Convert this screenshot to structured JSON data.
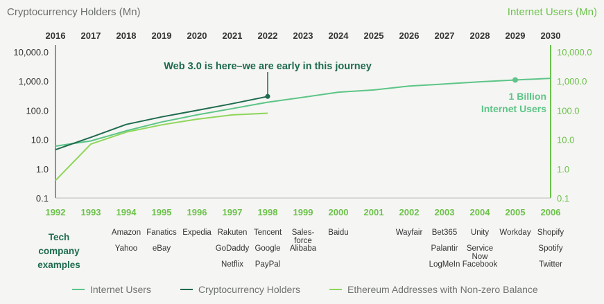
{
  "axis_titles": {
    "left": "Cryptocurrency Holders (Mn)",
    "right": "Internet Users (Mn)"
  },
  "tech_title": "Tech\ncompany\nexamples",
  "company_columns": [
    {
      "year": 1994,
      "items": [
        "Amazon",
        "Yahoo"
      ]
    },
    {
      "year": 1995,
      "items": [
        "Fanatics",
        "eBay"
      ]
    },
    {
      "year": 1996,
      "items": [
        "Expedia"
      ]
    },
    {
      "year": 1997,
      "items": [
        "Rakuten",
        "GoDaddy",
        "Netflix"
      ]
    },
    {
      "year": 1998,
      "items": [
        "Tencent",
        "Google",
        "PayPal"
      ]
    },
    {
      "year": 1999,
      "items": [
        "Sales-\nforce",
        "Alibaba"
      ]
    },
    {
      "year": 2000,
      "items": [
        "Baidu"
      ]
    },
    {
      "year": 2002,
      "items": [
        "Wayfair"
      ]
    },
    {
      "year": 2003,
      "items": [
        "Bet365",
        "Palantir",
        "LogMeIn"
      ]
    },
    {
      "year": 2004,
      "items": [
        "Unity",
        "Service\nNow",
        "Facebook"
      ]
    },
    {
      "year": 2005,
      "items": [
        "Workday"
      ]
    },
    {
      "year": 2006,
      "items": [
        "Shopify",
        "Spotify",
        "Twitter"
      ]
    }
  ],
  "legend": [
    {
      "label": "Internet Users",
      "color": "#5cc587"
    },
    {
      "label": "Cryptocurrency Holders",
      "color": "#1e6b4f"
    },
    {
      "label": "Ethereum Addresses with Non-zero Balance",
      "color": "#8fd65a"
    }
  ],
  "chart_data": {
    "type": "line",
    "scale": "log",
    "top_axis": {
      "ticks": [
        "2016",
        "2017",
        "2018",
        "2019",
        "2020",
        "2021",
        "2022",
        "2023",
        "2024",
        "2025",
        "2026",
        "2027",
        "2028",
        "2029",
        "2030"
      ],
      "color": "#333333"
    },
    "bottom_axis": {
      "ticks": [
        "1992",
        "1993",
        "1994",
        "1995",
        "1996",
        "1997",
        "1998",
        "1999",
        "2000",
        "2001",
        "2002",
        "2003",
        "2004",
        "2005",
        "2006"
      ],
      "color": "#6cc24a"
    },
    "left_axis": {
      "ticks": [
        "10,000.0",
        "1,000.0",
        "100.0",
        "10.0",
        "1.0",
        "0.1"
      ],
      "values": [
        10000,
        1000,
        100,
        10,
        1,
        0.1
      ],
      "color": "#333333"
    },
    "right_axis": {
      "ticks": [
        "10,000.0",
        "1,000.0",
        "100.0",
        "10.0",
        "1.0",
        "0.1"
      ],
      "values": [
        10000,
        1000,
        100,
        10,
        1,
        0.1
      ],
      "color": "#6cc24a"
    },
    "ylim": [
      0.1,
      10000
    ],
    "series": [
      {
        "name": "Internet Users",
        "axis": "bottom/right",
        "color": "#5cc587",
        "points": [
          [
            1992,
            6
          ],
          [
            1993,
            9
          ],
          [
            1994,
            20
          ],
          [
            1995,
            40
          ],
          [
            1996,
            70
          ],
          [
            1997,
            115
          ],
          [
            1998,
            190
          ],
          [
            1999,
            280
          ],
          [
            2000,
            420
          ],
          [
            2001,
            500
          ],
          [
            2002,
            680
          ],
          [
            2003,
            800
          ],
          [
            2004,
            950
          ],
          [
            2005,
            1100
          ],
          [
            2006,
            1250
          ]
        ]
      },
      {
        "name": "Cryptocurrency Holders",
        "axis": "top/left",
        "color": "#1e6b4f",
        "points": [
          [
            2016,
            4.5
          ],
          [
            2017,
            12
          ],
          [
            2018,
            33
          ],
          [
            2019,
            60
          ],
          [
            2020,
            100
          ],
          [
            2021,
            170
          ],
          [
            2022,
            300
          ]
        ]
      },
      {
        "name": "Ethereum Addresses with Non-zero Balance",
        "axis": "top/left",
        "color": "#8fd65a",
        "points": [
          [
            2016,
            0.4
          ],
          [
            2017,
            7
          ],
          [
            2018,
            18
          ],
          [
            2019,
            32
          ],
          [
            2020,
            50
          ],
          [
            2021,
            70
          ],
          [
            2022,
            80
          ]
        ]
      }
    ],
    "annotations": [
      {
        "text": "Web 3.0 is here–we are early in this journey",
        "color": "#1e6b4f",
        "at": [
          2022,
          300
        ]
      },
      {
        "text": "1 Billion\nInternet Users",
        "color": "#5cc587",
        "at": [
          2005,
          1100
        ]
      }
    ]
  }
}
